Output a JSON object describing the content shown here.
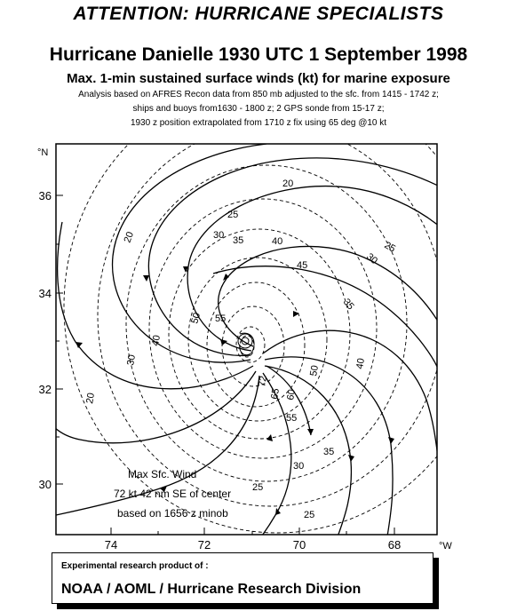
{
  "header": {
    "attention": "ATTENTION: HURRICANE SPECIALISTS",
    "title": "Hurricane Danielle 1930 UTC 1 September 1998",
    "subtitle": "Max. 1-min sustained surface winds (kt) for marine exposure",
    "notes": [
      "Analysis based on AFRES Recon data from 850 mb adjusted to the sfc. from 1415 - 1742 z;",
      "ships and buoys from1630 - 1800 z; 2 GPS sonde from 15-17 z;",
      "1930 z position extrapolated from 1710 z fix using 65 deg @10 kt"
    ]
  },
  "map": {
    "lat_ticks": [
      "36",
      "34",
      "32",
      "30"
    ],
    "lon_ticks": [
      "74",
      "72",
      "70",
      "68"
    ],
    "lat_unit": "°N",
    "lon_unit": "°W",
    "isotach_labels": [
      "20",
      "20",
      "20",
      "25",
      "25",
      "25",
      "25",
      "30",
      "30",
      "30",
      "30",
      "35",
      "35",
      "35",
      "40",
      "40",
      "40",
      "45",
      "50",
      "50",
      "55",
      "55",
      "60",
      "65",
      "72"
    ],
    "max_wind": {
      "line1": "Max Sfc. Wind",
      "line2": "72 kt 42 nm SE of center",
      "line3": "based on 1656 z minob"
    }
  },
  "footer": {
    "label": "Experimental research product of :",
    "org": "NOAA / AOML / Hurricane Research Division"
  },
  "colors": {
    "line": "#000000",
    "background": "#ffffff"
  }
}
